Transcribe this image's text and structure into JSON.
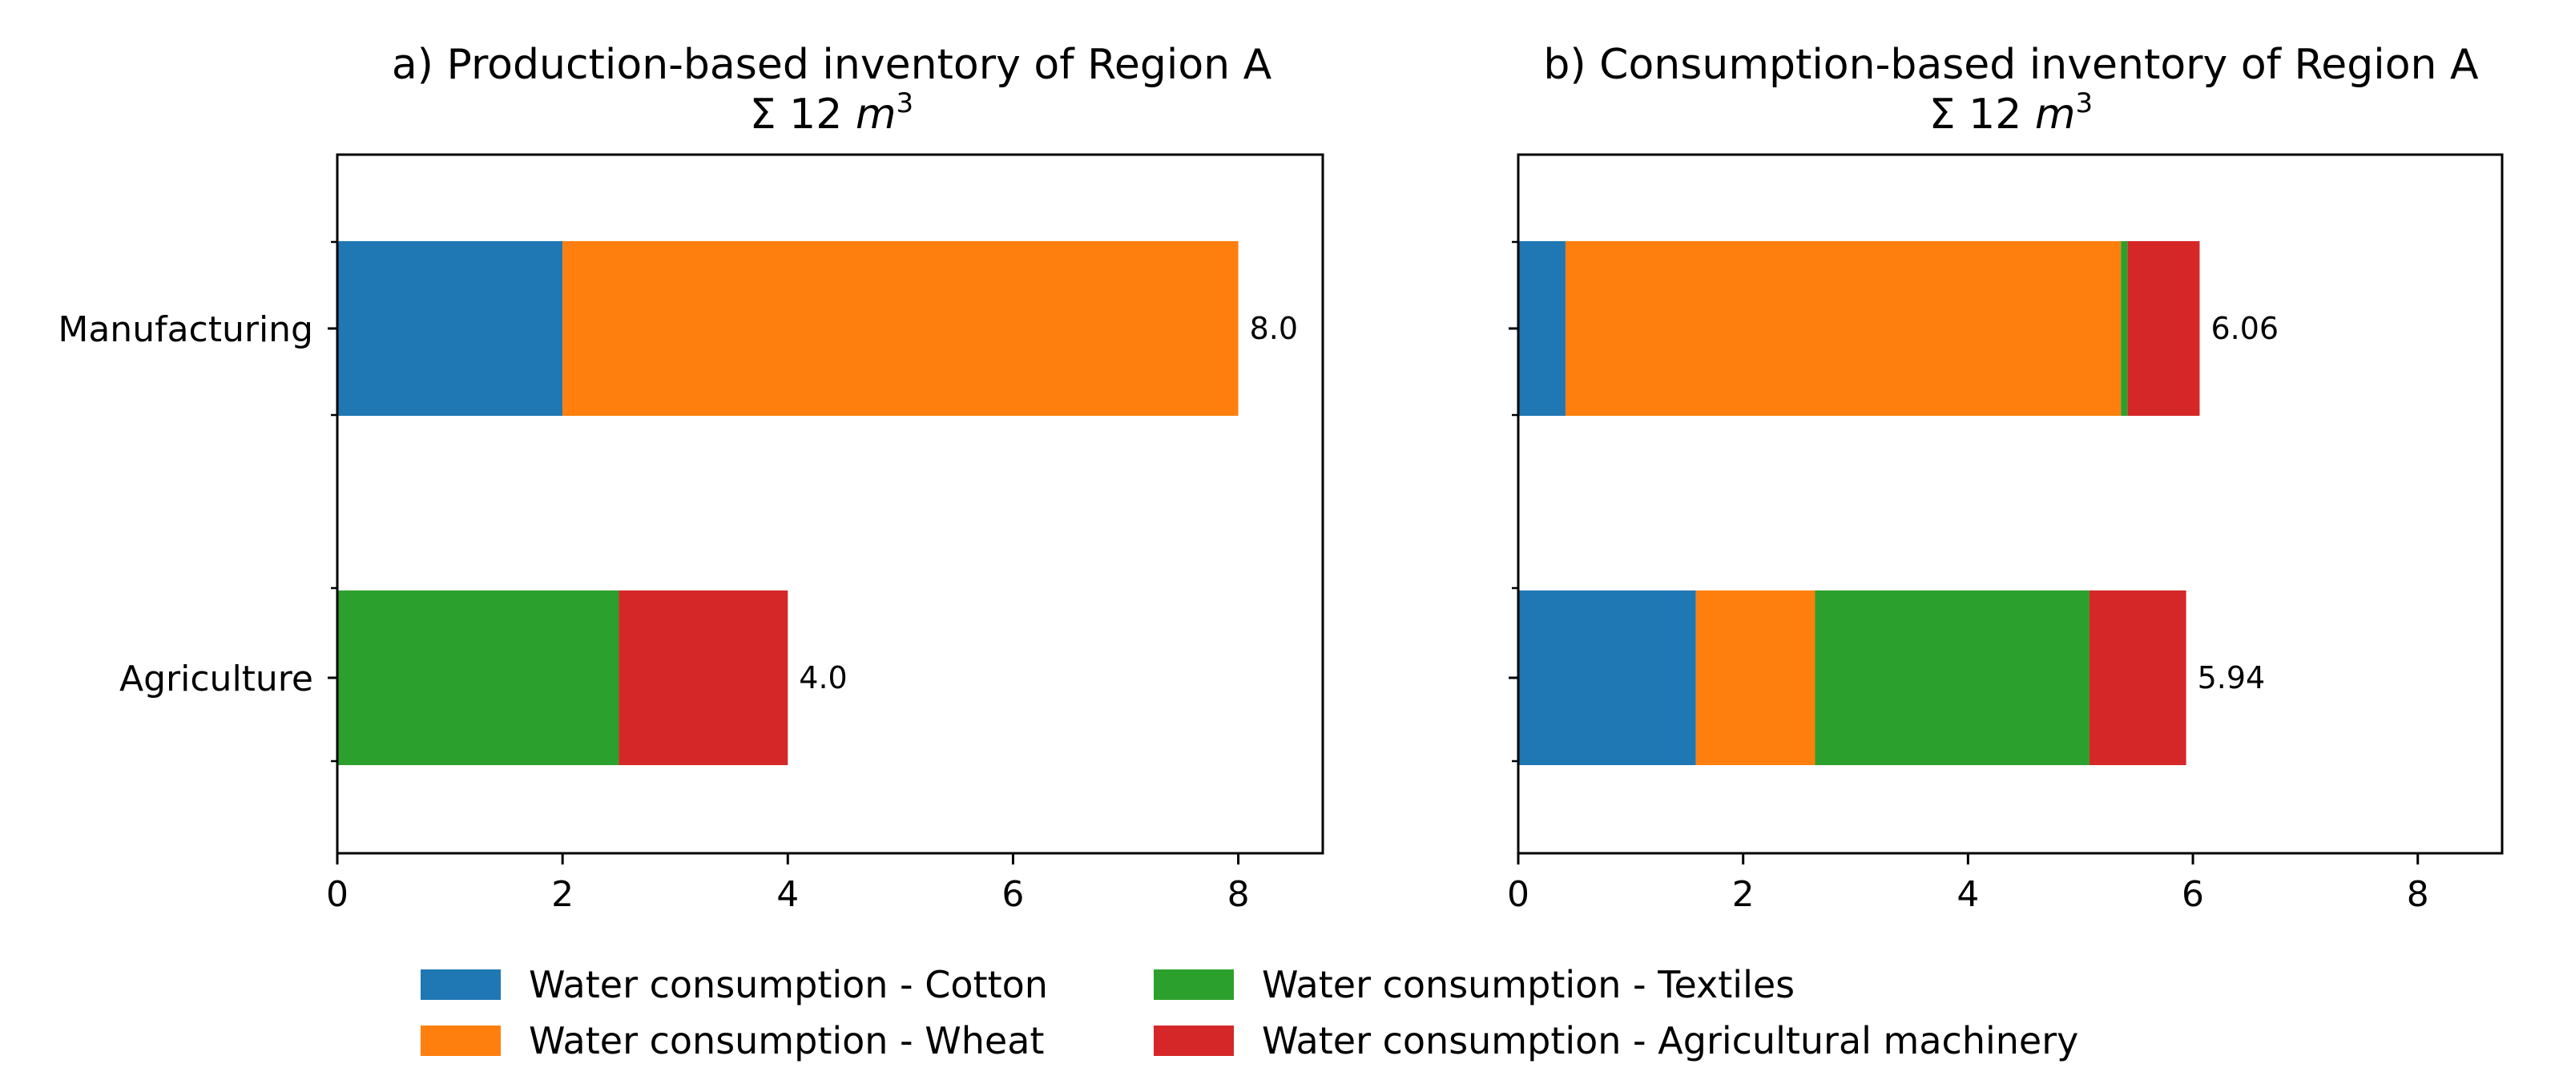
{
  "chart_data": [
    {
      "type": "bar",
      "orientation": "horizontal",
      "stacked": true,
      "title": "a) Production-based inventory of Region A",
      "subtitle": "Σ 12 m³",
      "subtitle_prefix": "Σ 12",
      "subtitle_unit": "m",
      "subtitle_exp": "3",
      "categories": [
        "Manufacturing",
        "Agriculture"
      ],
      "series": [
        {
          "name": "Water consumption - Cotton",
          "values": [
            2.0,
            0.0
          ]
        },
        {
          "name": "Water consumption - Wheat",
          "values": [
            6.0,
            0.0
          ]
        },
        {
          "name": "Water consumption - Textiles",
          "values": [
            0.0,
            2.5
          ]
        },
        {
          "name": "Water consumption - Agricultural machinery",
          "values": [
            0.0,
            1.5
          ]
        }
      ],
      "totals": [
        "8.0",
        "4.0"
      ],
      "xlim": [
        0,
        8.75
      ],
      "xticks": [
        0,
        2,
        4,
        6,
        8
      ],
      "xlabel": "",
      "ylabel": ""
    },
    {
      "type": "bar",
      "orientation": "horizontal",
      "stacked": true,
      "title": "b) Consumption-based inventory of Region A",
      "subtitle": "Σ 12 m³",
      "subtitle_prefix": "Σ 12",
      "subtitle_unit": "m",
      "subtitle_exp": "3",
      "categories": [
        "Manufacturing",
        "Agriculture"
      ],
      "series": [
        {
          "name": "Water consumption - Cotton",
          "values": [
            0.42,
            1.58
          ]
        },
        {
          "name": "Water consumption - Wheat",
          "values": [
            4.94,
            1.06
          ]
        },
        {
          "name": "Water consumption - Textiles",
          "values": [
            0.06,
            2.44
          ]
        },
        {
          "name": "Water consumption - Agricultural machinery",
          "values": [
            0.64,
            0.86
          ]
        }
      ],
      "totals": [
        "6.06",
        "5.94"
      ],
      "xlim": [
        0,
        8.75
      ],
      "xticks": [
        0,
        2,
        4,
        6,
        8
      ],
      "xlabel": "",
      "ylabel": ""
    }
  ],
  "legend": {
    "placement": "bottom-center",
    "columns": 2,
    "items": [
      {
        "label": "Water consumption - Cotton",
        "color": "#1f77b4"
      },
      {
        "label": "Water consumption - Wheat",
        "color": "#ff7f0e"
      },
      {
        "label": "Water consumption - Textiles",
        "color": "#2ca02c"
      },
      {
        "label": "Water consumption - Agricultural machinery",
        "color": "#d62728"
      }
    ]
  },
  "colors": [
    "#1f77b4",
    "#ff7f0e",
    "#2ca02c",
    "#d62728"
  ]
}
